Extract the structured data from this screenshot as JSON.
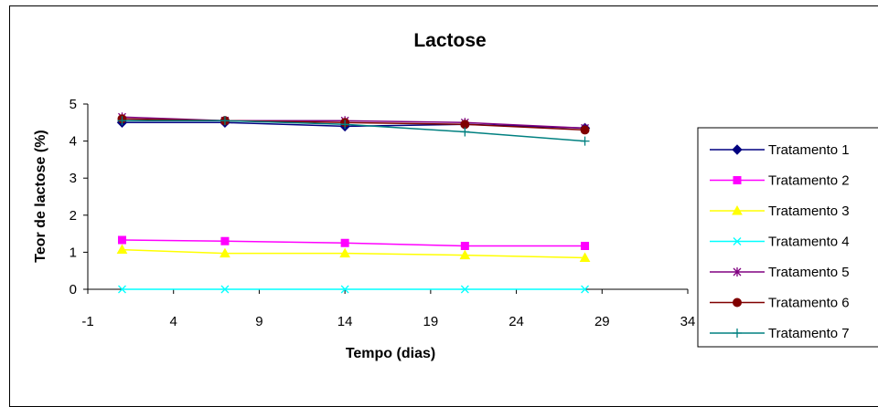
{
  "chart_data": {
    "type": "line",
    "title": "Lactose",
    "xlabel": "Tempo (dias)",
    "ylabel": "Teor de lactose (%)",
    "xlim": [
      -1,
      34
    ],
    "ylim": [
      0,
      5
    ],
    "xticks": [
      -1,
      4,
      9,
      14,
      19,
      24,
      29,
      34
    ],
    "yticks": [
      0,
      1,
      2,
      3,
      4,
      5
    ],
    "x": [
      1,
      7,
      14,
      21,
      28
    ],
    "grid": false,
    "legend": "right",
    "series": [
      {
        "name": "Tratamento 1",
        "color": "#000080",
        "marker": "diamond",
        "values": [
          4.5,
          4.5,
          4.4,
          4.45,
          4.35
        ]
      },
      {
        "name": "Tratamento 2",
        "color": "#FF00FF",
        "marker": "square",
        "values": [
          1.33,
          1.3,
          1.25,
          1.17,
          1.17
        ]
      },
      {
        "name": "Tratamento 3",
        "color": "#FFFF00",
        "marker": "triangle",
        "values": [
          1.07,
          0.97,
          0.97,
          0.92,
          0.85
        ]
      },
      {
        "name": "Tratamento 4",
        "color": "#00FFFF",
        "marker": "x",
        "values": [
          0,
          0,
          0,
          0,
          0
        ]
      },
      {
        "name": "Tratamento 5",
        "color": "#800080",
        "marker": "star",
        "values": [
          4.65,
          4.55,
          4.55,
          4.5,
          4.35
        ]
      },
      {
        "name": "Tratamento 6",
        "color": "#800000",
        "marker": "circle",
        "values": [
          4.6,
          4.55,
          4.5,
          4.45,
          4.3
        ]
      },
      {
        "name": "Tratamento 7",
        "color": "#008080",
        "marker": "plus",
        "values": [
          4.55,
          4.55,
          4.45,
          4.25,
          4.0
        ]
      }
    ]
  }
}
